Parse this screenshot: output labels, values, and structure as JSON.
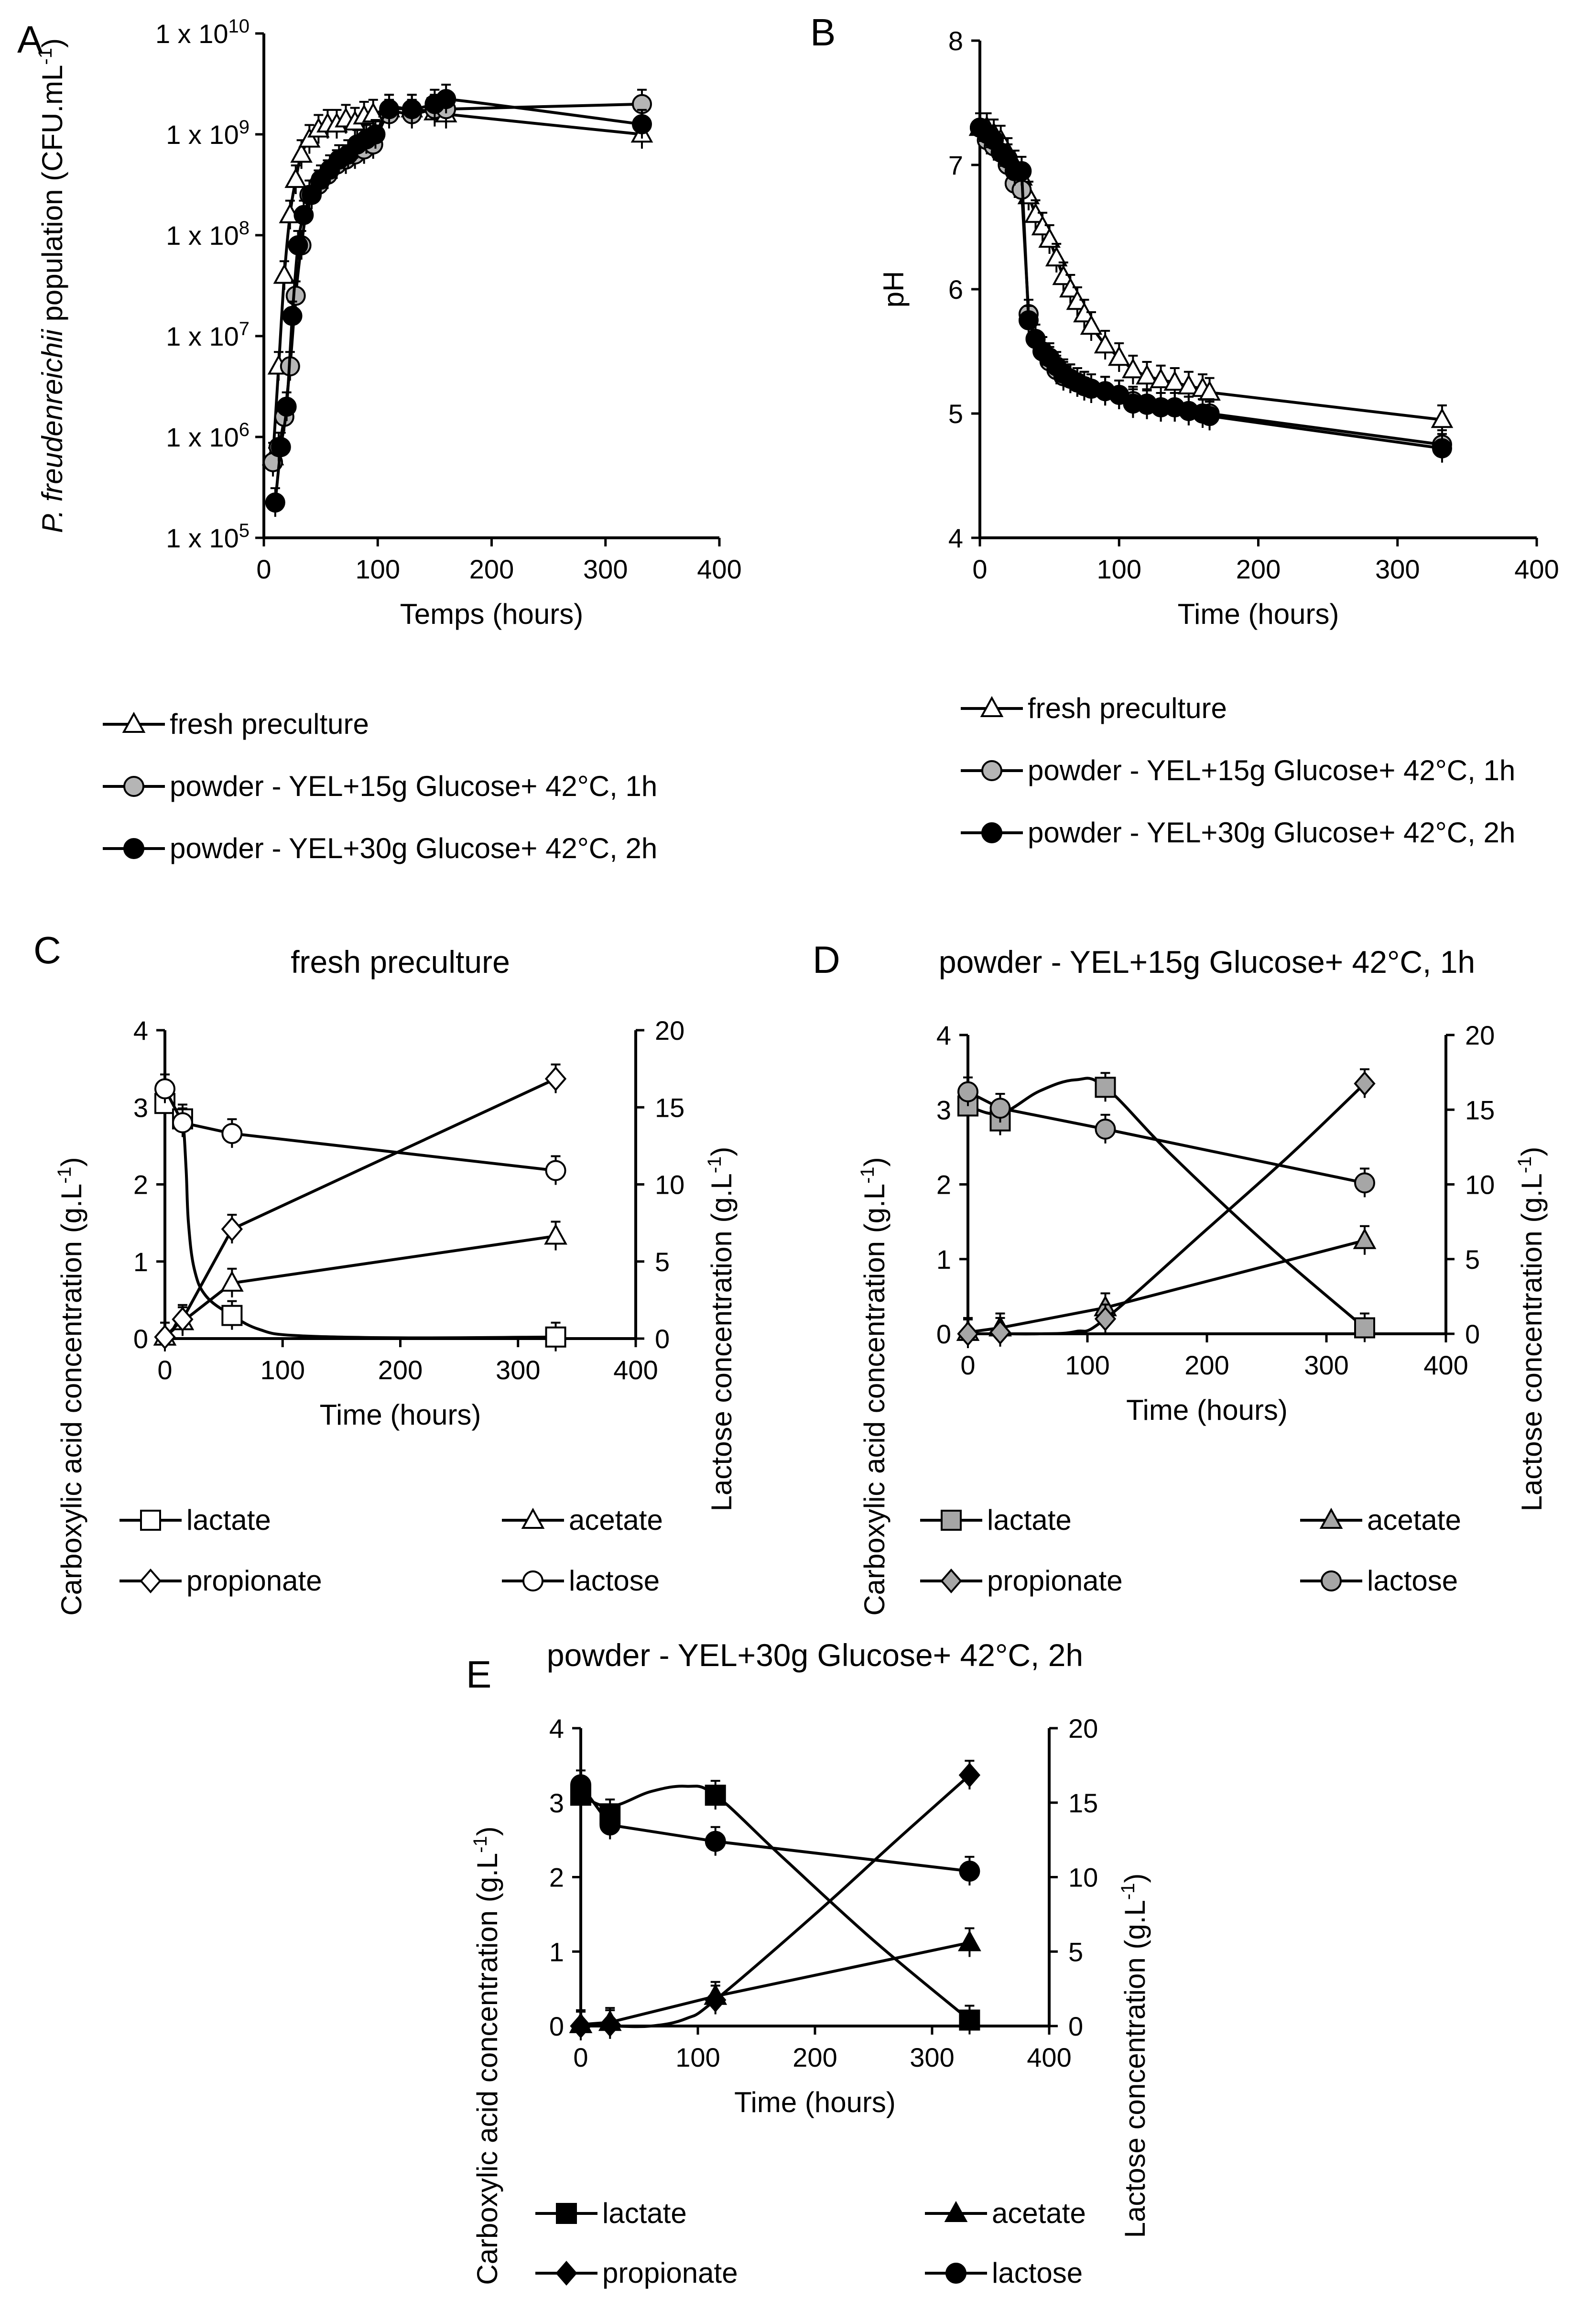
{
  "chart_data": [
    {
      "id": "A",
      "panel_label": "A",
      "type": "line",
      "title": "",
      "xlabel": "Temps (hours)",
      "ylabel_italic": "P. freudenreichii",
      "ylabel_rest": " population (CFU.mL-1)",
      "x_ticks": [
        0,
        100,
        200,
        300,
        400
      ],
      "y_scale": "log",
      "y_ticks": [
        {
          "base": "1 x 10",
          "exp": "5"
        },
        {
          "base": "1 x 10",
          "exp": "6"
        },
        {
          "base": "1 x 10",
          "exp": "7"
        },
        {
          "base": "1 x 10",
          "exp": "8"
        },
        {
          "base": "1 x 10",
          "exp": "9"
        },
        {
          "base": "1 x 10",
          "exp": "10"
        }
      ],
      "xlim": [
        0,
        400
      ],
      "ylim_log10": [
        5,
        10
      ],
      "legend_position": "bottom",
      "series": [
        {
          "name": "fresh preculture",
          "marker": "triangle",
          "fill": "#ffffff",
          "smooth": true,
          "x": [
            8,
            13,
            18,
            23,
            28,
            33,
            40,
            48,
            56,
            64,
            72,
            80,
            88,
            96,
            110,
            130,
            150,
            160,
            332
          ],
          "y": [
            5.8,
            6.7,
            7.6,
            8.2,
            8.55,
            8.8,
            8.95,
            9.05,
            9.1,
            9.1,
            9.15,
            9.12,
            9.18,
            9.2,
            9.25,
            9.25,
            9.22,
            9.2,
            9.0
          ]
        },
        {
          "name": "powder - YEL+15g Glucose+ 42°C, 1h",
          "marker": "circle",
          "fill": "#b5b5b5",
          "smooth": true,
          "x": [
            8,
            13,
            18,
            23,
            28,
            33,
            40,
            48,
            56,
            64,
            72,
            80,
            88,
            96,
            110,
            130,
            150,
            160,
            332
          ],
          "y": [
            5.75,
            5.9,
            6.2,
            6.7,
            7.4,
            7.9,
            8.4,
            8.5,
            8.6,
            8.7,
            8.75,
            8.8,
            8.85,
            8.9,
            9.2,
            9.2,
            9.25,
            9.25,
            9.3
          ]
        },
        {
          "name": "powder - YEL+30g Glucose+ 42°C, 2h",
          "marker": "circle",
          "fill": "#000000",
          "smooth": true,
          "x": [
            10,
            15,
            20,
            25,
            30,
            35,
            42,
            50,
            58,
            66,
            74,
            82,
            90,
            98,
            110,
            130,
            150,
            160,
            332
          ],
          "y": [
            5.35,
            5.9,
            6.3,
            7.2,
            7.9,
            8.2,
            8.4,
            8.55,
            8.65,
            8.75,
            8.8,
            8.9,
            8.95,
            9.0,
            9.25,
            9.25,
            9.3,
            9.35,
            9.1
          ]
        }
      ]
    },
    {
      "id": "B",
      "panel_label": "B",
      "type": "line",
      "title": "",
      "xlabel": "Time (hours)",
      "ylabel": "pH",
      "x_ticks": [
        0,
        100,
        200,
        300,
        400
      ],
      "y_ticks": [
        4,
        5,
        6,
        7,
        8
      ],
      "xlim": [
        0,
        400
      ],
      "ylim": [
        4,
        8
      ],
      "legend_position": "bottom",
      "series": [
        {
          "name": "fresh preculture",
          "marker": "triangle",
          "fill": "#ffffff",
          "x": [
            0,
            5,
            10,
            15,
            20,
            25,
            30,
            35,
            40,
            45,
            50,
            55,
            60,
            65,
            70,
            75,
            80,
            90,
            100,
            110,
            120,
            130,
            140,
            150,
            160,
            165,
            332
          ],
          "y": [
            7.3,
            7.3,
            7.25,
            7.2,
            7.1,
            7.0,
            6.9,
            6.75,
            6.6,
            6.5,
            6.4,
            6.25,
            6.1,
            6.0,
            5.9,
            5.8,
            5.7,
            5.55,
            5.45,
            5.35,
            5.3,
            5.27,
            5.25,
            5.22,
            5.2,
            5.17,
            4.95
          ]
        },
        {
          "name": "powder - YEL+15g Glucose+ 42°C, 1h",
          "marker": "circle",
          "fill": "#b5b5b5",
          "x": [
            0,
            5,
            10,
            15,
            20,
            25,
            30,
            35,
            40,
            45,
            50,
            55,
            60,
            65,
            70,
            75,
            80,
            90,
            100,
            110,
            120,
            130,
            140,
            150,
            160,
            165,
            332
          ],
          "y": [
            7.3,
            7.2,
            7.15,
            7.1,
            7.0,
            6.85,
            6.8,
            5.8,
            5.6,
            5.5,
            5.42,
            5.35,
            5.3,
            5.28,
            5.25,
            5.22,
            5.2,
            5.18,
            5.15,
            5.1,
            5.08,
            5.05,
            5.05,
            5.02,
            5.0,
            5.0,
            4.75
          ]
        },
        {
          "name": "powder - YEL+30g Glucose+ 42°C, 2h",
          "marker": "circle",
          "fill": "#000000",
          "x": [
            0,
            5,
            10,
            15,
            20,
            25,
            30,
            35,
            40,
            45,
            50,
            55,
            60,
            65,
            70,
            75,
            80,
            90,
            100,
            110,
            120,
            130,
            140,
            150,
            160,
            165,
            332
          ],
          "y": [
            7.3,
            7.25,
            7.2,
            7.1,
            7.05,
            6.95,
            6.95,
            5.75,
            5.6,
            5.5,
            5.45,
            5.38,
            5.32,
            5.28,
            5.25,
            5.22,
            5.2,
            5.18,
            5.15,
            5.08,
            5.07,
            5.05,
            5.05,
            5.02,
            5.0,
            4.98,
            4.72
          ]
        }
      ]
    },
    {
      "id": "C",
      "panel_label": "C",
      "type": "line",
      "title": "fresh preculture",
      "xlabel": "Time (hours)",
      "ylabel": "Carboxylic acid concentration (g.L-1)",
      "y2label": "Lactose concentration (g.L-1)",
      "x_ticks": [
        0,
        100,
        200,
        300,
        400
      ],
      "y_ticks": [
        0,
        1,
        2,
        3,
        4
      ],
      "y2_ticks": [
        0,
        5,
        10,
        15,
        20
      ],
      "xlim": [
        0,
        400
      ],
      "ylim": [
        0,
        4
      ],
      "y2lim": [
        0,
        20
      ],
      "legend_position": "bottom",
      "series": [
        {
          "name": "lactate",
          "marker": "square",
          "fill": "#ffffff",
          "axis": "left",
          "x": [
            0,
            15,
            57,
            332
          ],
          "y": [
            3.05,
            2.85,
            0.3,
            0.02
          ],
          "curve": [
            [
              0,
              3.05
            ],
            [
              10,
              2.95
            ],
            [
              15,
              2.85
            ],
            [
              18,
              2.2
            ],
            [
              20,
              1.5
            ],
            [
              25,
              0.9
            ],
            [
              35,
              0.55
            ],
            [
              57,
              0.3
            ],
            [
              80,
              0.12
            ],
            [
              110,
              0.04
            ],
            [
              200,
              0.01
            ],
            [
              332,
              0.02
            ]
          ]
        },
        {
          "name": "acetate",
          "marker": "triangle",
          "fill": "#ffffff",
          "axis": "left",
          "x": [
            0,
            15,
            57,
            332
          ],
          "y": [
            0.02,
            0.22,
            0.72,
            1.33
          ]
        },
        {
          "name": "propionate",
          "marker": "diamond",
          "fill": "#ffffff",
          "axis": "left",
          "x": [
            0,
            15,
            57,
            332
          ],
          "y": [
            0.02,
            0.25,
            1.42,
            3.37
          ]
        },
        {
          "name": "lactose",
          "marker": "circle",
          "fill": "#ffffff",
          "axis": "right",
          "x": [
            0,
            15,
            57,
            332
          ],
          "y": [
            16.2,
            14.0,
            13.3,
            10.9
          ]
        }
      ]
    },
    {
      "id": "D",
      "panel_label": "D",
      "type": "line",
      "title": "powder - YEL+15g Glucose+ 42°C, 1h",
      "xlabel": "Time (hours)",
      "ylabel": "Carboxylic acid concentration (g.L-1)",
      "y2label": "Lactose concentration (g.L-1)",
      "x_ticks": [
        0,
        100,
        200,
        300,
        400
      ],
      "y_ticks": [
        0,
        1,
        2,
        3,
        4
      ],
      "y2_ticks": [
        0,
        5,
        10,
        15,
        20
      ],
      "xlim": [
        0,
        400
      ],
      "ylim": [
        0,
        4
      ],
      "y2lim": [
        0,
        20
      ],
      "legend_position": "bottom",
      "series": [
        {
          "name": "lactate",
          "marker": "square",
          "fill": "#a6a6a6",
          "axis": "left",
          "x": [
            0,
            27,
            115,
            332
          ],
          "y": [
            3.05,
            2.85,
            3.3,
            0.08
          ],
          "curve": [
            [
              0,
              3.05
            ],
            [
              27,
              2.95
            ],
            [
              60,
              3.25
            ],
            [
              90,
              3.4
            ],
            [
              115,
              3.3
            ],
            [
              170,
              2.4
            ],
            [
              250,
              1.2
            ],
            [
              332,
              0.08
            ]
          ]
        },
        {
          "name": "acetate",
          "marker": "triangle",
          "fill": "#a6a6a6",
          "axis": "left",
          "x": [
            0,
            27,
            115,
            332
          ],
          "y": [
            0.02,
            0.08,
            0.35,
            1.25
          ]
        },
        {
          "name": "propionate",
          "marker": "diamond",
          "fill": "#a6a6a6",
          "axis": "left",
          "x": [
            0,
            27,
            115,
            332
          ],
          "y": [
            0.0,
            0.02,
            0.2,
            3.35
          ],
          "curve": [
            [
              0,
              0.0
            ],
            [
              27,
              0.0
            ],
            [
              60,
              0.0
            ],
            [
              90,
              0.03
            ],
            [
              115,
              0.2
            ],
            [
              200,
              1.4
            ],
            [
              270,
              2.4
            ],
            [
              332,
              3.35
            ]
          ]
        },
        {
          "name": "lactose",
          "marker": "circle",
          "fill": "#a6a6a6",
          "axis": "right",
          "x": [
            0,
            27,
            115,
            332
          ],
          "y": [
            16.2,
            15.1,
            13.7,
            10.1
          ]
        }
      ]
    },
    {
      "id": "E",
      "panel_label": "E",
      "type": "line",
      "title": "powder - YEL+30g Glucose+ 42°C, 2h",
      "xlabel": "Time (hours)",
      "ylabel": "Carboxylic acid concentration (g.L-1)",
      "y2label": "Lactose concentration (g.L-1)",
      "x_ticks": [
        0,
        100,
        200,
        300,
        400
      ],
      "y_ticks": [
        0,
        1,
        2,
        3,
        4
      ],
      "y2_ticks": [
        0,
        5,
        10,
        15,
        20
      ],
      "xlim": [
        0,
        400
      ],
      "ylim": [
        0,
        4
      ],
      "y2lim": [
        0,
        20
      ],
      "legend_position": "bottom",
      "series": [
        {
          "name": "lactate",
          "marker": "square",
          "fill": "#000000",
          "axis": "left",
          "x": [
            0,
            25,
            115,
            332
          ],
          "y": [
            3.1,
            2.85,
            3.1,
            0.08
          ],
          "curve": [
            [
              0,
              3.1
            ],
            [
              25,
              2.95
            ],
            [
              60,
              3.15
            ],
            [
              90,
              3.22
            ],
            [
              115,
              3.1
            ],
            [
              170,
              2.3
            ],
            [
              250,
              1.15
            ],
            [
              332,
              0.08
            ]
          ]
        },
        {
          "name": "acetate",
          "marker": "triangle",
          "fill": "#000000",
          "axis": "left",
          "x": [
            0,
            25,
            115,
            332
          ],
          "y": [
            0.02,
            0.05,
            0.4,
            1.12
          ]
        },
        {
          "name": "propionate",
          "marker": "diamond",
          "fill": "#000000",
          "axis": "left",
          "x": [
            0,
            25,
            115,
            332
          ],
          "y": [
            0.0,
            0.02,
            0.35,
            3.37
          ],
          "curve": [
            [
              0,
              0.0
            ],
            [
              25,
              0.0
            ],
            [
              60,
              0.0
            ],
            [
              90,
              0.1
            ],
            [
              115,
              0.35
            ],
            [
              200,
              1.5
            ],
            [
              270,
              2.5
            ],
            [
              332,
              3.37
            ]
          ]
        },
        {
          "name": "lactose",
          "marker": "circle",
          "fill": "#000000",
          "axis": "right",
          "x": [
            0,
            25,
            115,
            332
          ],
          "y": [
            16.2,
            13.5,
            12.4,
            10.4
          ]
        }
      ]
    }
  ]
}
